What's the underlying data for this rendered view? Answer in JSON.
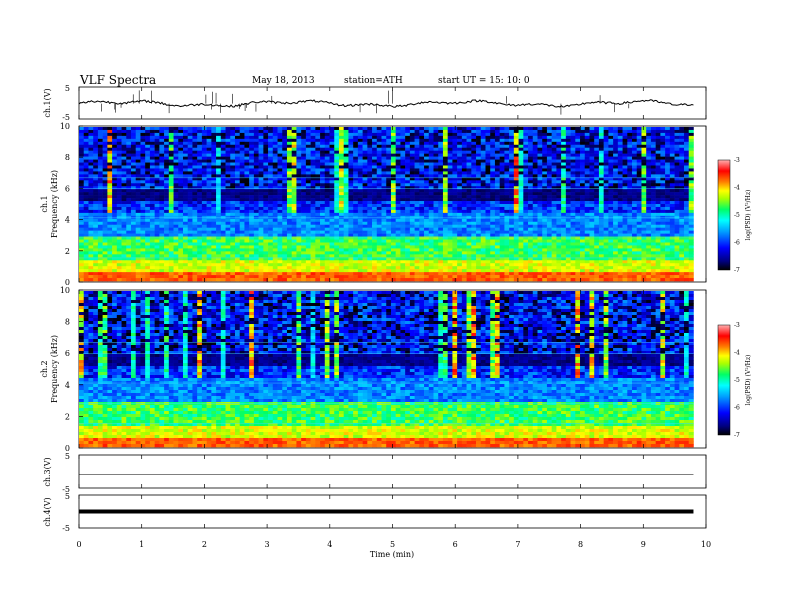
{
  "header": {
    "title": "VLF  Spectra",
    "date": "May 18, 2013",
    "station": "station=ATH",
    "start": "start  UT  =    15: 10: 0"
  },
  "colors": {
    "background": "#ffffff",
    "colormap": [
      "#000000",
      "#00007f",
      "#0000ff",
      "#00a0ff",
      "#00ffff",
      "#00ff66",
      "#aaff00",
      "#ffff00",
      "#ff8000",
      "#ff0000",
      "#ffb0b0"
    ]
  },
  "chart_data": [
    {
      "id": "ch1v",
      "type": "line",
      "ylabel": "ch.1(V)",
      "ylim": [
        -5,
        5
      ],
      "yticks": [
        "5",
        "-5"
      ],
      "x_range": [
        0,
        9.8
      ],
      "description_level": -0.2
    },
    {
      "id": "ch1spec",
      "type": "heatmap",
      "ylabel": [
        "ch.1",
        "Frequency  (kHz)"
      ],
      "ylim": [
        0,
        10
      ],
      "yticks": [
        "0",
        "2",
        "4",
        "6",
        "8",
        "10"
      ],
      "colorbar": {
        "label": "log(PSD) (V²/Hz)",
        "range": [
          -7,
          -3
        ],
        "ticks": [
          "-3",
          "-4",
          "-5",
          "-6",
          "-7"
        ]
      }
    },
    {
      "id": "ch2spec",
      "type": "heatmap",
      "ylabel": [
        "ch.2",
        "Frequency  (kHz)"
      ],
      "ylim": [
        0,
        10
      ],
      "yticks": [
        "0",
        "2",
        "4",
        "6",
        "8",
        "10"
      ],
      "colorbar": {
        "label": "log(PSD) (V²/Hz)",
        "range": [
          -7,
          -3
        ],
        "ticks": [
          "-3",
          "-4",
          "-5",
          "-6",
          "-7"
        ]
      }
    },
    {
      "id": "ch3v",
      "type": "line",
      "ylabel": "ch.3(V)",
      "ylim": [
        -5,
        5
      ],
      "yticks": [
        "5",
        "-5"
      ],
      "x_range": [
        0,
        9.8
      ]
    },
    {
      "id": "ch4v",
      "type": "line",
      "ylabel": "ch.4(V)",
      "ylim": [
        -5,
        5
      ],
      "yticks": [
        "5",
        "-5"
      ],
      "x_range": [
        0,
        9.8
      ]
    }
  ],
  "x_axis": {
    "label": "Time  (min)",
    "range": [
      0,
      10
    ],
    "ticks": [
      "0",
      "1",
      "2",
      "3",
      "4",
      "5",
      "6",
      "7",
      "8",
      "9",
      "10"
    ]
  }
}
